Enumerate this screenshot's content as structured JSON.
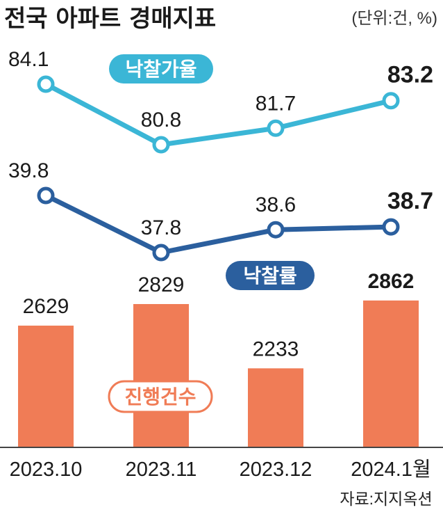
{
  "header": {
    "title": "전국 아파트 경매지표",
    "unit": "(단위:건, %)"
  },
  "source": "자료:지지옥션",
  "chart_data": {
    "type": "bar+line",
    "categories": [
      "2023.10",
      "2023.11",
      "2023.12",
      "2024.1월"
    ],
    "series": [
      {
        "name": "낙찰가율",
        "type": "line",
        "unit": "%",
        "values": [
          84.1,
          80.8,
          81.7,
          83.2
        ],
        "color": "#3bb6d6"
      },
      {
        "name": "낙찰률",
        "type": "line",
        "unit": "%",
        "values": [
          39.8,
          37.8,
          38.6,
          38.7
        ],
        "color": "#2b5f9e"
      },
      {
        "name": "진행건수",
        "type": "bar",
        "unit": "건",
        "values": [
          2629,
          2829,
          2233,
          2862
        ],
        "color": "#f07c56"
      }
    ],
    "value_labels": {
      "낙찰가율": [
        "84.1",
        "80.8",
        "81.7",
        "83.2"
      ],
      "낙찰률": [
        "39.8",
        "37.8",
        "38.6",
        "38.7"
      ],
      "진행건수": [
        "2629",
        "2829",
        "2233",
        "2862"
      ]
    },
    "highlight_last": true,
    "grid": false
  }
}
